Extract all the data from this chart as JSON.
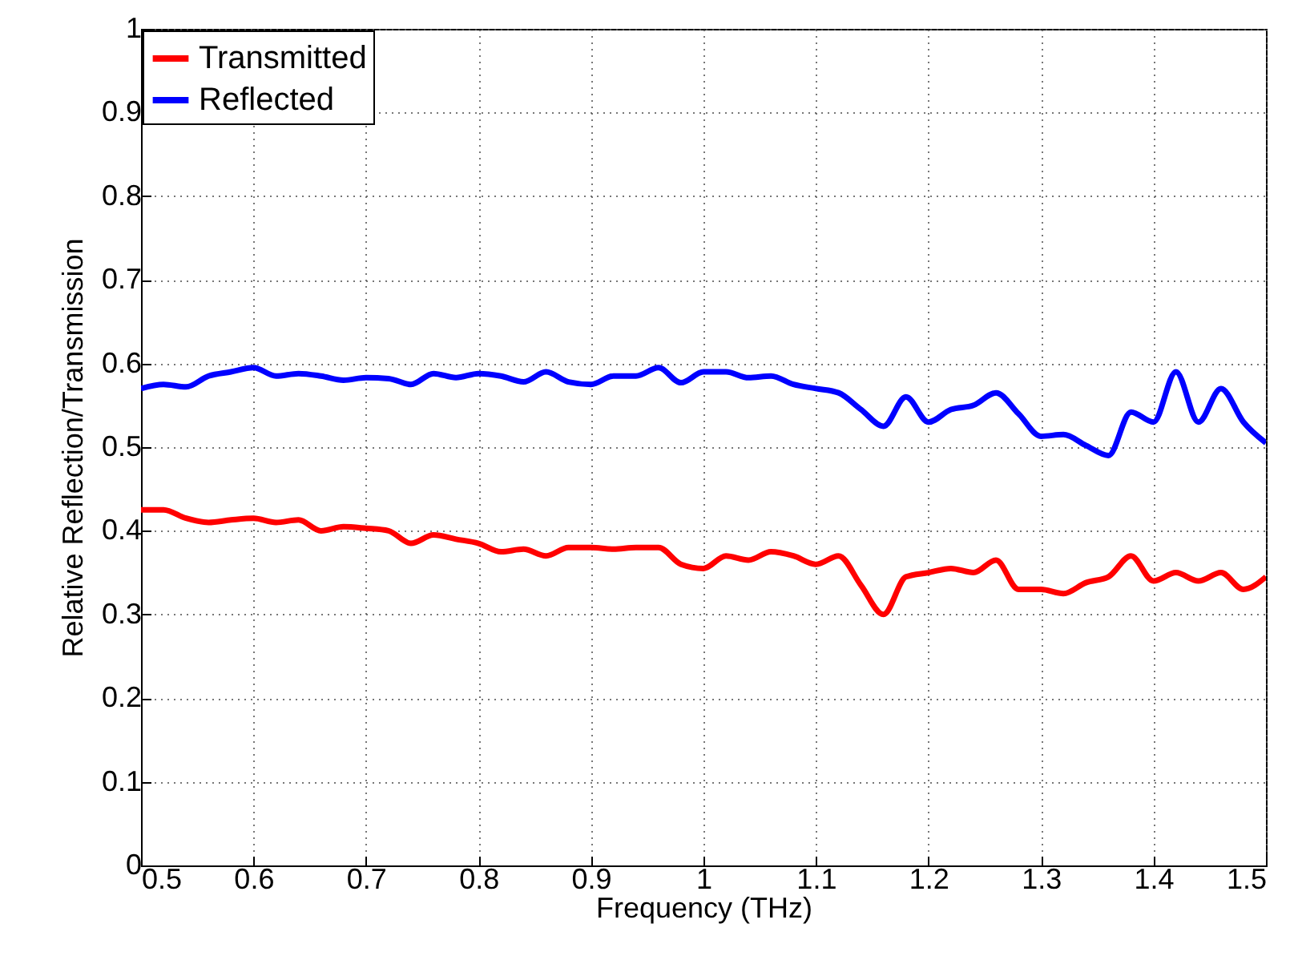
{
  "chart_data": {
    "type": "line",
    "xlabel": "Frequency (THz)",
    "ylabel": "Relative Reflection/Transmission",
    "x": [
      0.5,
      0.52,
      0.54,
      0.56,
      0.58,
      0.6,
      0.62,
      0.64,
      0.66,
      0.68,
      0.7,
      0.72,
      0.74,
      0.76,
      0.78,
      0.8,
      0.82,
      0.84,
      0.86,
      0.88,
      0.9,
      0.92,
      0.94,
      0.96,
      0.98,
      1.0,
      1.02,
      1.04,
      1.06,
      1.08,
      1.1,
      1.12,
      1.14,
      1.16,
      1.18,
      1.2,
      1.22,
      1.24,
      1.26,
      1.28,
      1.3,
      1.32,
      1.34,
      1.36,
      1.38,
      1.4,
      1.42,
      1.44,
      1.46,
      1.48,
      1.5
    ],
    "series": [
      {
        "name": "Transmitted",
        "color": "#ff0000",
        "values": [
          0.425,
          0.425,
          0.415,
          0.41,
          0.413,
          0.415,
          0.41,
          0.413,
          0.4,
          0.405,
          0.403,
          0.4,
          0.385,
          0.395,
          0.39,
          0.385,
          0.375,
          0.378,
          0.37,
          0.38,
          0.38,
          0.378,
          0.38,
          0.38,
          0.36,
          0.355,
          0.37,
          0.365,
          0.375,
          0.37,
          0.36,
          0.37,
          0.335,
          0.3,
          0.345,
          0.35,
          0.355,
          0.35,
          0.365,
          0.33,
          0.33,
          0.325,
          0.338,
          0.345,
          0.37,
          0.34,
          0.35,
          0.34,
          0.35,
          0.33,
          0.345
        ]
      },
      {
        "name": "Reflected",
        "color": "#0000ff",
        "values": [
          0.57,
          0.575,
          0.572,
          0.585,
          0.59,
          0.595,
          0.585,
          0.588,
          0.585,
          0.58,
          0.583,
          0.582,
          0.575,
          0.588,
          0.583,
          0.588,
          0.585,
          0.578,
          0.59,
          0.578,
          0.575,
          0.585,
          0.585,
          0.595,
          0.577,
          0.59,
          0.59,
          0.583,
          0.585,
          0.575,
          0.57,
          0.565,
          0.545,
          0.525,
          0.56,
          0.53,
          0.545,
          0.55,
          0.565,
          0.54,
          0.513,
          0.515,
          0.502,
          0.49,
          0.542,
          0.53,
          0.59,
          0.53,
          0.57,
          0.53,
          0.505
        ]
      }
    ],
    "xlim": [
      0.5,
      1.5
    ],
    "xticks": [
      0.5,
      0.6,
      0.7,
      0.8,
      0.9,
      1,
      1.1,
      1.2,
      1.3,
      1.4,
      1.5
    ],
    "ylim": [
      0,
      1
    ],
    "yticks": [
      0,
      0.1,
      0.2,
      0.3,
      0.4,
      0.5,
      0.6,
      0.7,
      0.8,
      0.9,
      1
    ],
    "grid": true,
    "legend": "top left",
    "marker": "none",
    "line_style": "solid"
  }
}
